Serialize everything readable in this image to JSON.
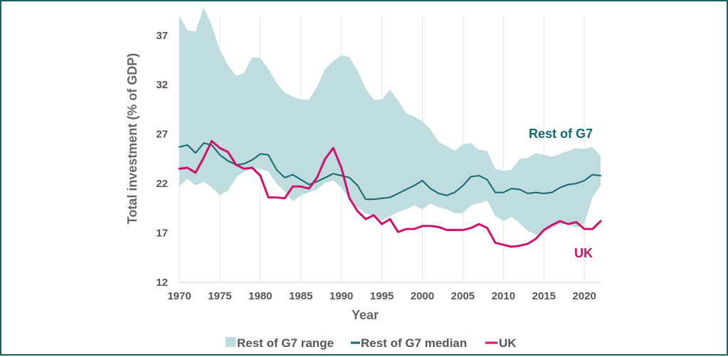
{
  "chart_data": {
    "type": "area",
    "xlabel": "Year",
    "ylabel": "Total investment (% of GDP)",
    "xlim": [
      1970,
      2022
    ],
    "ylim": [
      12,
      39
    ],
    "xticks": [
      1970,
      1975,
      1980,
      1985,
      1990,
      1995,
      2000,
      2005,
      2010,
      2015,
      2020
    ],
    "yticks": [
      12,
      17,
      22,
      27,
      32,
      37
    ],
    "grid": "vertical",
    "legend_position": "bottom",
    "x": [
      1970,
      1971,
      1972,
      1973,
      1974,
      1975,
      1976,
      1977,
      1978,
      1979,
      1980,
      1981,
      1982,
      1983,
      1984,
      1985,
      1986,
      1987,
      1988,
      1989,
      1990,
      1991,
      1992,
      1993,
      1994,
      1995,
      1996,
      1997,
      1998,
      1999,
      2000,
      2001,
      2002,
      2003,
      2004,
      2005,
      2006,
      2007,
      2008,
      2009,
      2010,
      2011,
      2012,
      2013,
      2014,
      2015,
      2016,
      2017,
      2018,
      2019,
      2020,
      2021,
      2022
    ],
    "series": [
      {
        "name": "Rest of G7 range",
        "type": "band",
        "color": "#bfdcde",
        "upper": [
          39.0,
          37.5,
          37.4,
          39.8,
          38.0,
          35.5,
          34.0,
          32.9,
          33.2,
          34.8,
          34.7,
          33.6,
          32.2,
          31.2,
          30.8,
          30.5,
          30.5,
          31.8,
          33.6,
          34.4,
          35.0,
          34.8,
          33.4,
          31.6,
          30.5,
          30.5,
          31.5,
          30.4,
          29.1,
          28.8,
          28.3,
          27.5,
          26.2,
          25.8,
          25.3,
          26.0,
          26.1,
          25.4,
          25.3,
          23.5,
          23.3,
          23.4,
          24.5,
          24.6,
          25.1,
          24.9,
          24.7,
          25.0,
          25.3,
          25.6,
          25.5,
          25.7,
          24.8
        ],
        "lower": [
          21.7,
          22.5,
          21.8,
          22.2,
          21.6,
          20.8,
          21.3,
          22.6,
          23.2,
          23.5,
          23.5,
          23.2,
          22.0,
          21.2,
          20.2,
          20.8,
          21.1,
          21.4,
          22.1,
          22.3,
          21.6,
          20.3,
          19.6,
          19.0,
          18.7,
          18.3,
          18.7,
          19.1,
          19.4,
          19.8,
          19.4,
          20.0,
          19.6,
          19.4,
          19.0,
          19.0,
          19.8,
          20.0,
          20.3,
          18.7,
          18.2,
          18.6,
          18.0,
          17.2,
          16.8,
          17.0,
          17.5,
          17.9,
          17.9,
          17.5,
          18.0,
          20.6,
          21.8
        ]
      },
      {
        "name": "Rest of G7 median",
        "color": "#11696e",
        "values": [
          25.7,
          25.9,
          25.1,
          26.1,
          25.9,
          24.9,
          24.3,
          23.9,
          24.0,
          24.4,
          25.0,
          24.9,
          23.4,
          22.6,
          22.9,
          22.4,
          21.9,
          22.2,
          22.6,
          23.0,
          22.8,
          22.6,
          21.8,
          20.4,
          20.4,
          20.5,
          20.6,
          21.0,
          21.4,
          21.8,
          22.3,
          21.5,
          21.0,
          20.8,
          21.1,
          21.8,
          22.7,
          22.8,
          22.4,
          21.1,
          21.1,
          21.5,
          21.4,
          21.0,
          21.1,
          21.0,
          21.1,
          21.6,
          21.9,
          22.0,
          22.3,
          22.9,
          22.8
        ]
      },
      {
        "name": "UK",
        "color": "#d0116c",
        "values": [
          23.5,
          23.6,
          23.1,
          24.6,
          26.3,
          25.6,
          25.2,
          23.9,
          23.5,
          23.6,
          22.8,
          20.6,
          20.6,
          20.5,
          21.7,
          21.7,
          21.5,
          22.6,
          24.5,
          25.6,
          23.6,
          20.5,
          19.2,
          18.4,
          18.8,
          17.9,
          18.4,
          17.1,
          17.4,
          17.4,
          17.7,
          17.7,
          17.6,
          17.3,
          17.3,
          17.3,
          17.5,
          17.9,
          17.5,
          16.0,
          15.8,
          15.6,
          15.7,
          15.9,
          16.4,
          17.3,
          17.8,
          18.2,
          17.9,
          18.1,
          17.4,
          17.4,
          18.2
        ]
      }
    ],
    "annotations": [
      {
        "text": "Rest of G7",
        "color": "#11696e"
      },
      {
        "text": "UK",
        "color": "#d0116c"
      }
    ]
  },
  "legend": {
    "items": [
      {
        "label": "Rest of G7 range",
        "color": "#bfdcde",
        "marker": "square"
      },
      {
        "label": "Rest of G7 median",
        "color": "#11696e",
        "marker": "line"
      },
      {
        "label": "UK",
        "color": "#d0116c",
        "marker": "line"
      }
    ]
  }
}
